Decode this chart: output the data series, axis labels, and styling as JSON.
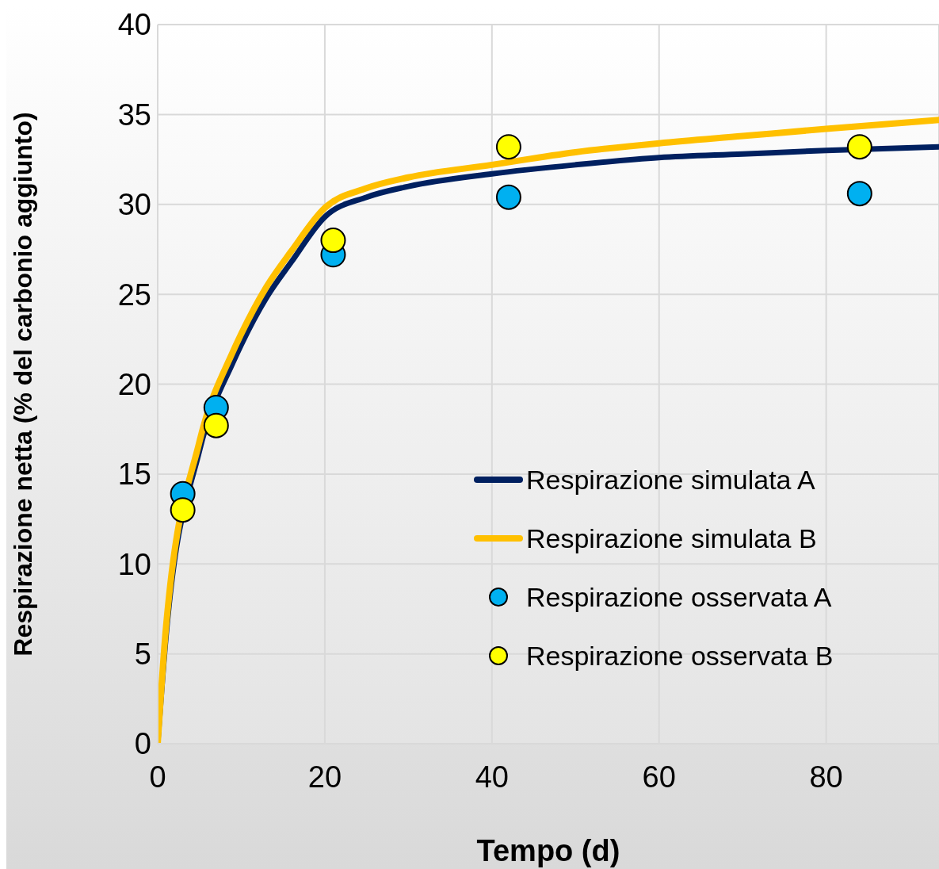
{
  "chart_data": {
    "type": "line",
    "xlabel": "Tempo (d)",
    "ylabel": "Respirazione netta (% del carbonio aggiunto)",
    "xlim": [
      0,
      93.5
    ],
    "ylim": [
      0,
      40
    ],
    "xticks": [
      0,
      20,
      40,
      60,
      80
    ],
    "yticks": [
      0,
      5,
      10,
      15,
      20,
      25,
      30,
      35,
      40
    ],
    "grid": true,
    "legend": "right",
    "marker": "none",
    "series": [
      {
        "name": "Respirazione simulata A",
        "color": "#002060",
        "x": [
          0,
          1,
          5,
          9,
          10,
          13,
          16,
          20,
          25,
          30,
          40,
          50,
          60,
          70,
          80,
          93.5
        ],
        "values": [
          0,
          6,
          16.3,
          21.2,
          22.2,
          24.8,
          26.8,
          29.3,
          30.4,
          31,
          31.7,
          32.2,
          32.6,
          32.8,
          33,
          33.2
        ]
      },
      {
        "name": "Respirazione simulata B",
        "color": "#ffc000",
        "x": [
          0,
          1,
          5,
          9,
          10,
          13,
          16,
          20,
          25,
          30,
          40,
          50,
          60,
          70,
          80,
          93.5
        ],
        "values": [
          0,
          6.5,
          16.8,
          21.8,
          22.8,
          25.4,
          27.4,
          29.8,
          30.9,
          31.5,
          32.2,
          32.9,
          33.4,
          33.8,
          34.2,
          34.7
        ]
      },
      {
        "name": "Respirazione osservata A",
        "type": "scatter",
        "color": "#00b0f0",
        "marker": "circle",
        "x": [
          3,
          7,
          21,
          42,
          84
        ],
        "values": [
          13.9,
          18.7,
          27.2,
          30.4,
          30.6
        ]
      },
      {
        "name": "Respirazione osservata B",
        "type": "scatter",
        "color": "#ffff00",
        "marker": "circle",
        "x": [
          3,
          7,
          21,
          42,
          84
        ],
        "values": [
          13,
          17.7,
          28,
          33.2,
          33.2
        ]
      }
    ]
  }
}
